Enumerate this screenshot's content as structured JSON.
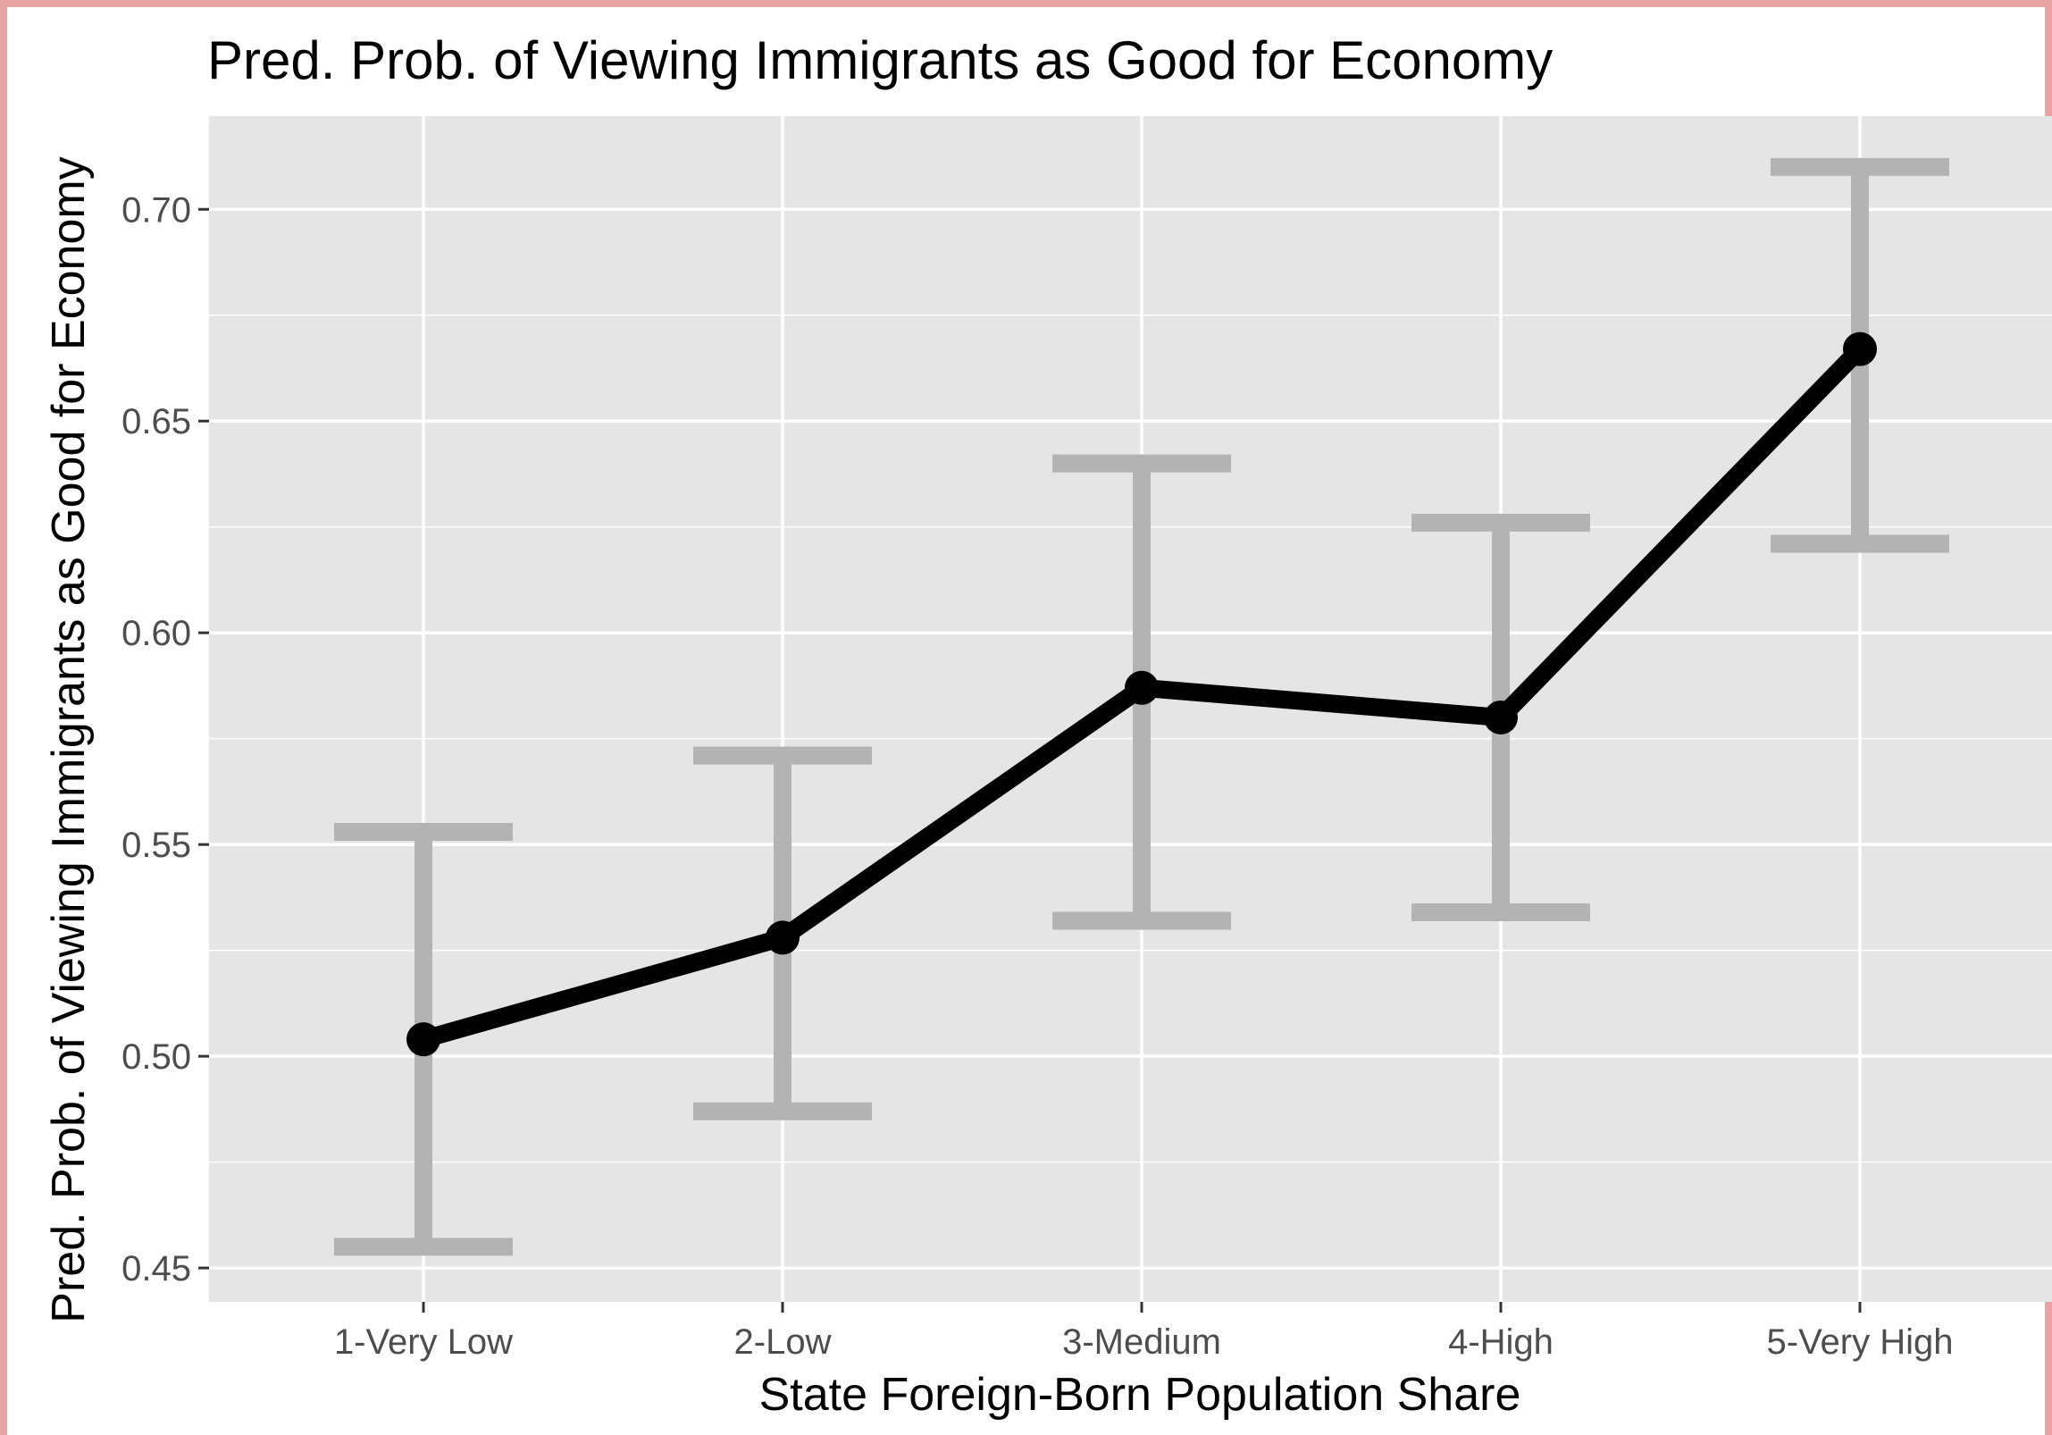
{
  "chart_data": {
    "type": "line",
    "title": "Pred. Prob. of Viewing Immigrants as Good for Economy",
    "xlabel": "State Foreign-Born Population Share",
    "ylabel": "Pred. Prob. of Viewing Immigrants as Good for Economy",
    "categories": [
      "1-Very Low",
      "2-Low",
      "3-Medium",
      "4-High",
      "5-Very High"
    ],
    "values": [
      0.504,
      0.528,
      0.587,
      0.58,
      0.667
    ],
    "ci_lower": [
      0.455,
      0.487,
      0.532,
      0.534,
      0.621
    ],
    "ci_upper": [
      0.553,
      0.571,
      0.64,
      0.626,
      0.71
    ],
    "ylim": [
      0.442,
      0.722
    ],
    "yticks": [
      "0.45",
      "0.50",
      "0.55",
      "0.60",
      "0.65",
      "0.70"
    ],
    "grid": true,
    "legend": "none",
    "colors": {
      "panel": "#e5e5e5",
      "grid": "#ffffff",
      "line": "#000000",
      "error_bar": "#b3b3b3",
      "frame": "#e8a3a3"
    }
  }
}
